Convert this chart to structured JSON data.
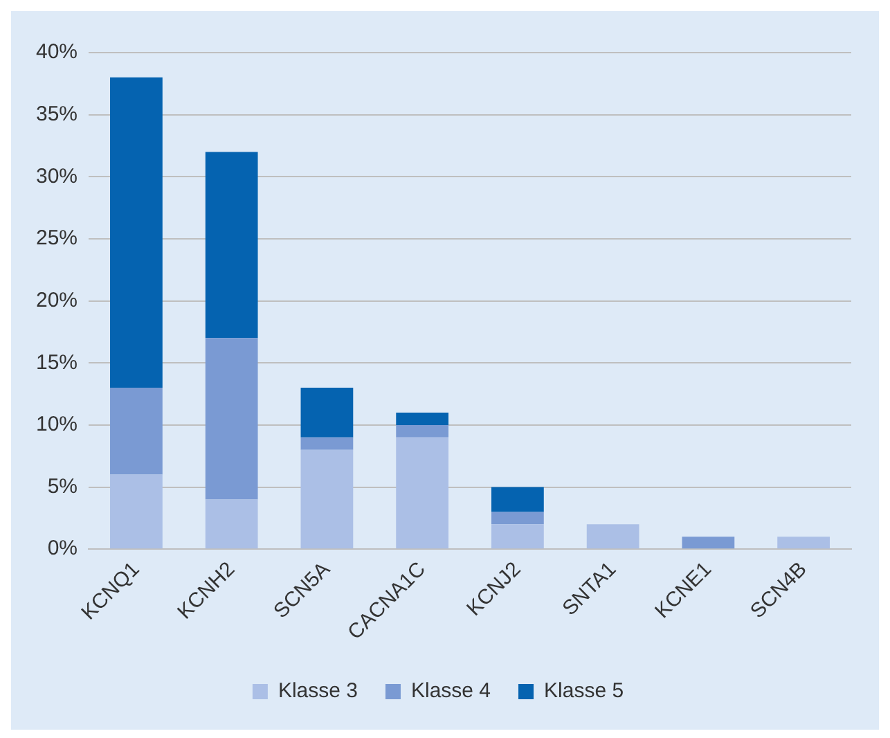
{
  "chart_data": {
    "type": "bar",
    "stacked": true,
    "categories": [
      "KCNQ1",
      "KCNH2",
      "SCN5A",
      "CACNA1C",
      "KCNJ2",
      "SNTA1",
      "KCNE1",
      "SCN4B"
    ],
    "series": [
      {
        "name": "Klasse 3",
        "color": "#abbfe6",
        "values": [
          6,
          4,
          8,
          9,
          2,
          2,
          0,
          1
        ]
      },
      {
        "name": "Klasse 4",
        "color": "#7a9ad3",
        "values": [
          7,
          13,
          1,
          1,
          1,
          0,
          1,
          0
        ]
      },
      {
        "name": "Klasse 5",
        "color": "#0563b0",
        "values": [
          25,
          15,
          4,
          1,
          2,
          0,
          0,
          0
        ]
      }
    ],
    "ylim": [
      0,
      40
    ],
    "yticks": [
      {
        "value": 0,
        "label": "0%"
      },
      {
        "value": 5,
        "label": "5%"
      },
      {
        "value": 10,
        "label": "10%"
      },
      {
        "value": 15,
        "label": "15%"
      },
      {
        "value": 20,
        "label": "20%"
      },
      {
        "value": 25,
        "label": "25%"
      },
      {
        "value": 30,
        "label": "30%"
      },
      {
        "value": 35,
        "label": "35%"
      },
      {
        "value": 40,
        "label": "40%"
      }
    ],
    "grid": "y",
    "legend": "bottom"
  }
}
